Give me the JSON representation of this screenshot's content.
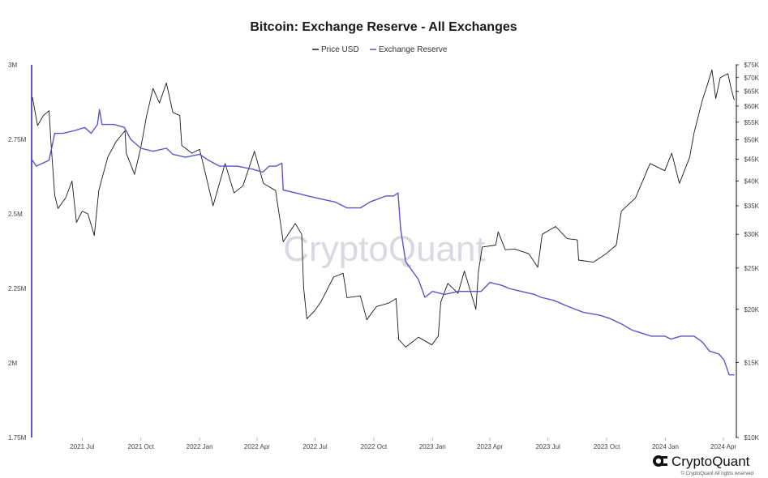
{
  "chart_data": {
    "type": "line",
    "title": "Bitcoin: Exchange Reserve - All Exchanges",
    "legend": {
      "placement": "top-center",
      "entries": [
        "Price USD",
        "Exchange Reserve"
      ]
    },
    "x_ticks": [
      "2021 Jul",
      "2021 Oct",
      "2022 Jan",
      "2022 Apr",
      "2022 Jul",
      "2022 Oct",
      "2023 Jan",
      "2023 Apr",
      "2023 Jul",
      "2023 Oct",
      "2024 Jan",
      "2024 Apr"
    ],
    "x_range": [
      "2021-04-14",
      "2024-04-20"
    ],
    "left_axis": {
      "ticks": [
        "3M",
        "2.75M",
        "2.5M",
        "2.25M",
        "2M",
        "1.75M"
      ],
      "range": [
        1750000,
        3000000
      ]
    },
    "right_axis": {
      "scale": "log",
      "ticks": [
        "$75K",
        "$70K",
        "$65K",
        "$60K",
        "$55K",
        "$50K",
        "$45K",
        "$40K",
        "$35K",
        "$30K",
        "$25K",
        "$20K",
        "$15K",
        "$10K"
      ],
      "range": [
        10000,
        75000
      ]
    },
    "grid": false,
    "colors": {
      "price": "#1a1a1a",
      "reserve": "#5a55c8"
    },
    "series": [
      {
        "name": "Price USD",
        "axis": "right",
        "points": [
          [
            "2021-04-14",
            63000
          ],
          [
            "2021-04-22",
            54000
          ],
          [
            "2021-05-01",
            57000
          ],
          [
            "2021-05-10",
            58500
          ],
          [
            "2021-05-13",
            49500
          ],
          [
            "2021-05-19",
            37000
          ],
          [
            "2021-05-24",
            34500
          ],
          [
            "2021-06-05",
            36500
          ],
          [
            "2021-06-15",
            40000
          ],
          [
            "2021-06-22",
            32000
          ],
          [
            "2021-07-01",
            34000
          ],
          [
            "2021-07-10",
            33500
          ],
          [
            "2021-07-20",
            29800
          ],
          [
            "2021-07-27",
            38000
          ],
          [
            "2021-08-10",
            45500
          ],
          [
            "2021-08-23",
            49500
          ],
          [
            "2021-09-06",
            52500
          ],
          [
            "2021-09-08",
            46500
          ],
          [
            "2021-09-21",
            41500
          ],
          [
            "2021-10-01",
            48000
          ],
          [
            "2021-10-10",
            57000
          ],
          [
            "2021-10-20",
            66000
          ],
          [
            "2021-10-30",
            61000
          ],
          [
            "2021-11-10",
            68000
          ],
          [
            "2021-11-20",
            58000
          ],
          [
            "2021-12-01",
            57000
          ],
          [
            "2021-12-04",
            48500
          ],
          [
            "2021-12-20",
            46500
          ],
          [
            "2022-01-01",
            47500
          ],
          [
            "2022-01-10",
            41800
          ],
          [
            "2022-01-22",
            35000
          ],
          [
            "2022-02-10",
            44000
          ],
          [
            "2022-02-24",
            37500
          ],
          [
            "2022-03-10",
            39000
          ],
          [
            "2022-03-28",
            47000
          ],
          [
            "2022-04-11",
            39500
          ],
          [
            "2022-04-30",
            38000
          ],
          [
            "2022-05-09",
            31000
          ],
          [
            "2022-05-12",
            28800
          ],
          [
            "2022-05-31",
            31800
          ],
          [
            "2022-06-10",
            30000
          ],
          [
            "2022-06-13",
            22500
          ],
          [
            "2022-06-18",
            19000
          ],
          [
            "2022-06-30",
            19800
          ],
          [
            "2022-07-10",
            20800
          ],
          [
            "2022-07-30",
            23800
          ],
          [
            "2022-08-14",
            24300
          ],
          [
            "2022-08-20",
            21300
          ],
          [
            "2022-09-10",
            21500
          ],
          [
            "2022-09-20",
            18900
          ],
          [
            "2022-10-05",
            20300
          ],
          [
            "2022-10-25",
            20700
          ],
          [
            "2022-11-05",
            21200
          ],
          [
            "2022-11-09",
            17000
          ],
          [
            "2022-11-20",
            16300
          ],
          [
            "2022-12-10",
            17200
          ],
          [
            "2022-12-31",
            16500
          ],
          [
            "2023-01-10",
            17300
          ],
          [
            "2023-01-14",
            20800
          ],
          [
            "2023-01-25",
            23000
          ],
          [
            "2023-02-10",
            21800
          ],
          [
            "2023-02-20",
            24600
          ],
          [
            "2023-03-10",
            20000
          ],
          [
            "2023-03-14",
            24500
          ],
          [
            "2023-03-20",
            28000
          ],
          [
            "2023-04-10",
            28300
          ],
          [
            "2023-04-14",
            30400
          ],
          [
            "2023-04-25",
            27600
          ],
          [
            "2023-05-10",
            27700
          ],
          [
            "2023-06-01",
            27000
          ],
          [
            "2023-06-15",
            25100
          ],
          [
            "2023-06-22",
            30000
          ],
          [
            "2023-07-13",
            31300
          ],
          [
            "2023-07-31",
            29300
          ],
          [
            "2023-08-16",
            29100
          ],
          [
            "2023-08-18",
            26100
          ],
          [
            "2023-09-10",
            25800
          ],
          [
            "2023-09-30",
            27000
          ],
          [
            "2023-10-16",
            28300
          ],
          [
            "2023-10-24",
            34000
          ],
          [
            "2023-11-15",
            36500
          ],
          [
            "2023-12-08",
            44000
          ],
          [
            "2023-12-31",
            42300
          ],
          [
            "2024-01-11",
            46500
          ],
          [
            "2024-01-23",
            39500
          ],
          [
            "2024-02-08",
            45500
          ],
          [
            "2024-02-15",
            52000
          ],
          [
            "2024-02-28",
            62000
          ],
          [
            "2024-03-05",
            66000
          ],
          [
            "2024-03-14",
            73000
          ],
          [
            "2024-03-20",
            62500
          ],
          [
            "2024-03-27",
            70000
          ],
          [
            "2024-04-08",
            71500
          ],
          [
            "2024-04-13",
            66000
          ],
          [
            "2024-04-18",
            62000
          ]
        ]
      },
      {
        "name": "Exchange Reserve",
        "axis": "left",
        "points": [
          [
            "2021-04-14",
            2680000
          ],
          [
            "2021-04-20",
            2660000
          ],
          [
            "2021-05-10",
            2680000
          ],
          [
            "2021-05-19",
            2770000
          ],
          [
            "2021-06-01",
            2770000
          ],
          [
            "2021-06-20",
            2780000
          ],
          [
            "2021-07-05",
            2790000
          ],
          [
            "2021-07-15",
            2770000
          ],
          [
            "2021-07-25",
            2800000
          ],
          [
            "2021-07-28",
            2850000
          ],
          [
            "2021-08-01",
            2800000
          ],
          [
            "2021-08-20",
            2800000
          ],
          [
            "2021-09-05",
            2790000
          ],
          [
            "2021-09-15",
            2750000
          ],
          [
            "2021-10-01",
            2720000
          ],
          [
            "2021-10-20",
            2710000
          ],
          [
            "2021-11-10",
            2720000
          ],
          [
            "2021-11-20",
            2700000
          ],
          [
            "2021-12-10",
            2690000
          ],
          [
            "2022-01-01",
            2700000
          ],
          [
            "2022-01-15",
            2680000
          ],
          [
            "2022-02-01",
            2660000
          ],
          [
            "2022-03-01",
            2660000
          ],
          [
            "2022-03-25",
            2650000
          ],
          [
            "2022-04-10",
            2640000
          ],
          [
            "2022-04-20",
            2660000
          ],
          [
            "2022-05-01",
            2660000
          ],
          [
            "2022-05-10",
            2670000
          ],
          [
            "2022-05-12",
            2580000
          ],
          [
            "2022-06-01",
            2570000
          ],
          [
            "2022-06-20",
            2560000
          ],
          [
            "2022-07-10",
            2550000
          ],
          [
            "2022-08-01",
            2540000
          ],
          [
            "2022-08-20",
            2520000
          ],
          [
            "2022-09-10",
            2520000
          ],
          [
            "2022-09-25",
            2540000
          ],
          [
            "2022-10-20",
            2560000
          ],
          [
            "2022-11-01",
            2560000
          ],
          [
            "2022-11-08",
            2570000
          ],
          [
            "2022-11-12",
            2450000
          ],
          [
            "2022-11-20",
            2340000
          ],
          [
            "2022-12-10",
            2280000
          ],
          [
            "2022-12-20",
            2220000
          ],
          [
            "2023-01-01",
            2240000
          ],
          [
            "2023-01-20",
            2230000
          ],
          [
            "2023-02-10",
            2240000
          ],
          [
            "2023-03-01",
            2240000
          ],
          [
            "2023-03-18",
            2240000
          ],
          [
            "2023-04-01",
            2270000
          ],
          [
            "2023-04-20",
            2260000
          ],
          [
            "2023-05-01",
            2250000
          ],
          [
            "2023-05-20",
            2240000
          ],
          [
            "2023-06-10",
            2230000
          ],
          [
            "2023-06-20",
            2220000
          ],
          [
            "2023-07-10",
            2210000
          ],
          [
            "2023-08-01",
            2190000
          ],
          [
            "2023-08-25",
            2170000
          ],
          [
            "2023-09-20",
            2160000
          ],
          [
            "2023-10-05",
            2150000
          ],
          [
            "2023-10-25",
            2130000
          ],
          [
            "2023-11-10",
            2110000
          ],
          [
            "2023-11-25",
            2100000
          ],
          [
            "2023-12-10",
            2090000
          ],
          [
            "2023-12-31",
            2090000
          ],
          [
            "2024-01-10",
            2080000
          ],
          [
            "2024-01-25",
            2090000
          ],
          [
            "2024-02-15",
            2090000
          ],
          [
            "2024-02-28",
            2070000
          ],
          [
            "2024-03-10",
            2040000
          ],
          [
            "2024-03-25",
            2030000
          ],
          [
            "2024-04-02",
            2010000
          ],
          [
            "2024-04-10",
            1960000
          ],
          [
            "2024-04-18",
            1960000
          ]
        ]
      }
    ]
  },
  "watermark": "CryptoQuant",
  "brand": {
    "name": "CryptoQuant",
    "copyright": "© CryptoQuant All rights reserved"
  }
}
